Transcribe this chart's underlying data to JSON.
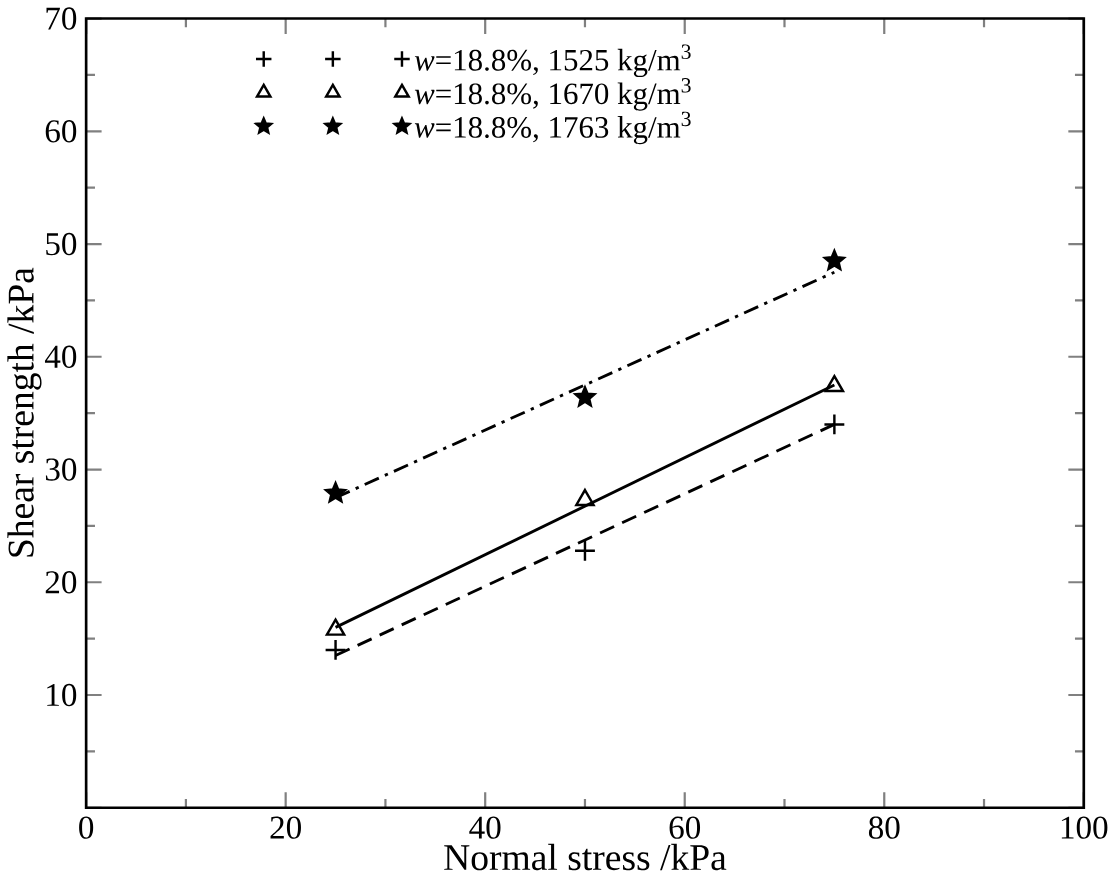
{
  "chart_data": {
    "type": "scatter",
    "xlabel": "Normal stress /kPa",
    "ylabel": "Shear strength /kPa",
    "xlim": [
      0,
      100
    ],
    "ylim": [
      0,
      70
    ],
    "xticks": [
      0,
      20,
      40,
      60,
      80,
      100
    ],
    "yticks": [
      {
        "value": 0,
        "label": null
      },
      10,
      20,
      30,
      40,
      50,
      60,
      70
    ],
    "grid": false,
    "legend": "top left",
    "series": [
      {
        "name": "*w*=18.8%, 1525 kg/m$^{3}$",
        "marker": "cross",
        "color": "#000000",
        "x": [
          25,
          50,
          75
        ],
        "values": [
          14,
          22.8,
          34
        ]
      },
      {
        "name": "*w*=18.8%, 1670 kg/m$^{3}$",
        "marker": "triangle",
        "color": "#000000",
        "x": [
          25,
          50,
          75
        ],
        "values": [
          15.8,
          27.3,
          37.4
        ]
      },
      {
        "name": "*w*=18.8%, 1763 kg/m$^{3}$",
        "marker": "star",
        "color": "#000000",
        "x": [
          25,
          50,
          75
        ],
        "values": [
          27.9,
          36.4,
          48.5
        ]
      },
      {
        "type": "line",
        "line_style": "dashed",
        "color": "#000000",
        "x": [
          25,
          75
        ],
        "values": [
          13.5,
          34
        ]
      },
      {
        "type": "line",
        "line_style": "solid",
        "color": "#000000",
        "x": [
          25,
          75
        ],
        "values": [
          16,
          37.5
        ]
      },
      {
        "type": "line",
        "line_style": "dashdot",
        "color": "#000000",
        "x": [
          25,
          75
        ],
        "values": [
          27.5,
          47.5
        ]
      }
    ]
  }
}
